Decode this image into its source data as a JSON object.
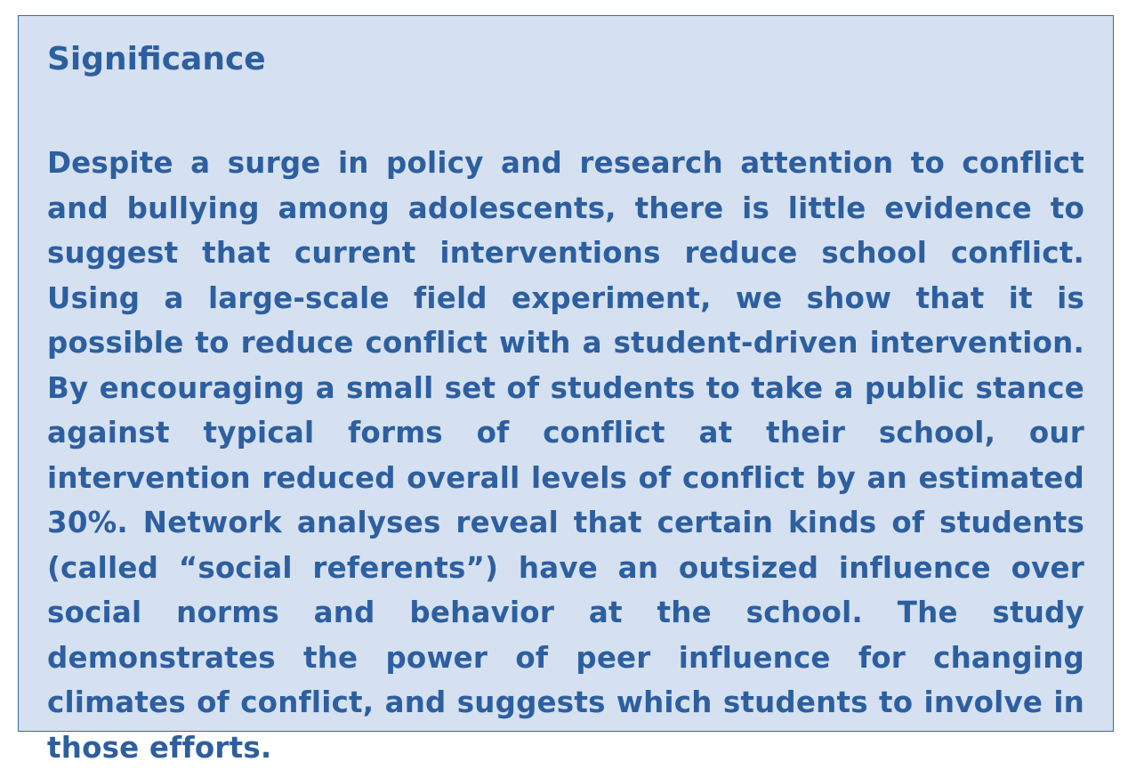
{
  "significance": {
    "title": "Significance",
    "body": "Despite a surge in policy and research attention to conflict and bullying among adolescents, there is little evidence to suggest that current interventions reduce school conflict. Using a large-scale field experiment, we show that it is possible to reduce conflict with a student-driven intervention. By encouraging a small set of students to take a public stance against typical forms of conflict at their school, our intervention reduced overall levels of conflict by an estimated 30%. Network analyses reveal that certain kinds of students (called “social referents”) have an outsized influence over social norms and behavior at the school. The study demonstrates the power of peer influence for changing climates of conflict, and suggests which students to involve in those efforts."
  },
  "colors": {
    "box_background": "#d5e1f0",
    "box_border": "#3b6aa5",
    "text": "#2d5fa0"
  }
}
